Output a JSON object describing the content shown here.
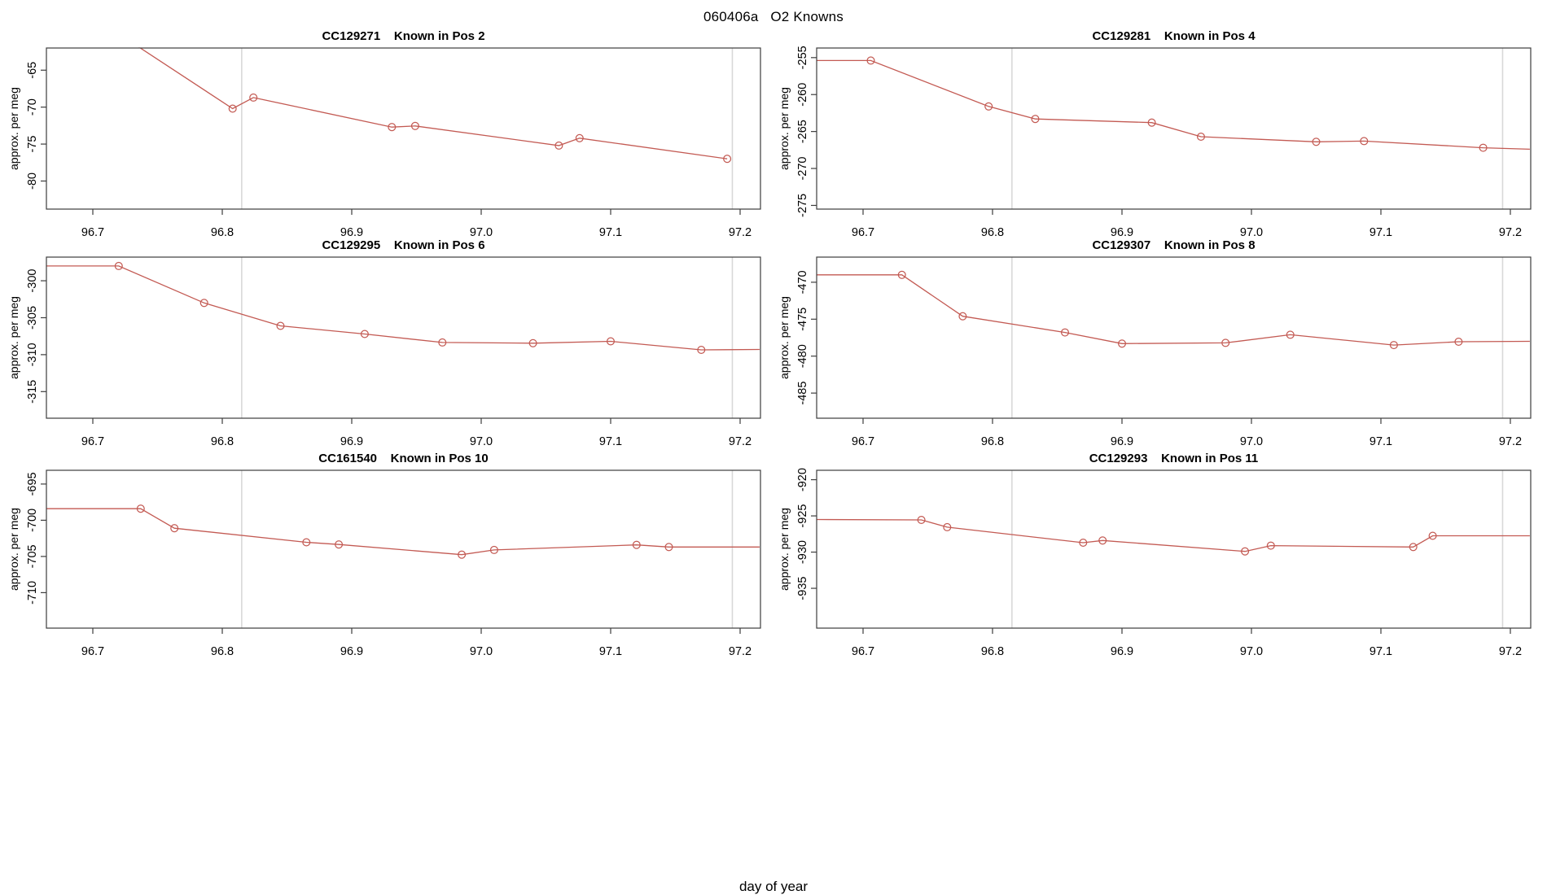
{
  "main_title": "060406a   O2 Knowns",
  "x_axis_label": "day of year",
  "y_axis_label": "approx. per meg",
  "colors": {
    "line": "#c35a53",
    "marker": "#c35a53",
    "grid": "#d8d8d8",
    "axis": "#3d3d3d",
    "text": "#000000",
    "background": "#ffffff"
  },
  "chart_data": {
    "type": "line",
    "xlabel": "day of year",
    "ylabel": "approx. per meg",
    "x_ticks": [
      96.7,
      96.8,
      96.9,
      97.0,
      97.1,
      97.2
    ],
    "xlim": [
      96.663,
      97.216
    ],
    "vlines_x": [
      96.815,
      97.194
    ],
    "grid": "vertical-reference-lines-only",
    "legend": "none",
    "marker_style": "open-circle",
    "panels": [
      {
        "title": "CC129271    Known in Pos 2",
        "sample_id": "CC129271",
        "position_label": "Known in Pos 2",
        "row": 0,
        "col": 0,
        "ylim": [
          -83.8,
          -62.0
        ],
        "yticks": [
          -65,
          -70,
          -75,
          -80
        ],
        "line": [
          [
            96.695,
            -57.2
          ],
          [
            96.808,
            -70.2
          ],
          [
            96.824,
            -68.7
          ],
          [
            96.931,
            -72.7
          ],
          [
            96.949,
            -72.55
          ],
          [
            97.06,
            -75.2
          ],
          [
            97.076,
            -74.2
          ],
          [
            97.19,
            -77.0
          ]
        ],
        "markers": [
          [
            96.808,
            -70.2
          ],
          [
            96.824,
            -68.7
          ],
          [
            96.931,
            -72.7
          ],
          [
            96.949,
            -72.55
          ],
          [
            97.06,
            -75.2
          ],
          [
            97.076,
            -74.2
          ],
          [
            97.19,
            -77.0
          ]
        ]
      },
      {
        "title": "CC129281    Known in Pos 4",
        "sample_id": "CC129281",
        "position_label": "Known in Pos 4",
        "row": 0,
        "col": 1,
        "ylim": [
          -275.5,
          -253.7
        ],
        "yticks": [
          -255,
          -260,
          -265,
          -270,
          -275
        ],
        "line": [
          [
            96.664,
            -255.4
          ],
          [
            96.706,
            -255.4
          ],
          [
            96.797,
            -261.6
          ],
          [
            96.833,
            -263.3
          ],
          [
            96.923,
            -263.8
          ],
          [
            96.961,
            -265.7
          ],
          [
            97.05,
            -266.4
          ],
          [
            97.087,
            -266.3
          ],
          [
            97.179,
            -267.2
          ],
          [
            97.215,
            -267.4
          ]
        ],
        "markers": [
          [
            96.706,
            -255.4
          ],
          [
            96.797,
            -261.6
          ],
          [
            96.833,
            -263.3
          ],
          [
            96.923,
            -263.8
          ],
          [
            96.961,
            -265.7
          ],
          [
            97.05,
            -266.4
          ],
          [
            97.087,
            -266.3
          ],
          [
            97.179,
            -267.2
          ]
        ]
      },
      {
        "title": "CC129295    Known in Pos 6",
        "sample_id": "CC129295",
        "position_label": "Known in Pos 6",
        "row": 1,
        "col": 0,
        "ylim": [
          -318.6,
          -296.8
        ],
        "yticks": [
          -300,
          -305,
          -310,
          -315
        ],
        "line": [
          [
            96.664,
            -298.0
          ],
          [
            96.72,
            -298.0
          ],
          [
            96.786,
            -303.0
          ],
          [
            96.845,
            -306.1
          ],
          [
            96.91,
            -307.2
          ],
          [
            96.97,
            -308.35
          ],
          [
            97.04,
            -308.45
          ],
          [
            97.1,
            -308.2
          ],
          [
            97.17,
            -309.35
          ],
          [
            97.215,
            -309.3
          ]
        ],
        "markers": [
          [
            96.72,
            -298.0
          ],
          [
            96.786,
            -303.0
          ],
          [
            96.845,
            -306.1
          ],
          [
            96.91,
            -307.2
          ],
          [
            96.97,
            -308.35
          ],
          [
            97.04,
            -308.45
          ],
          [
            97.1,
            -308.2
          ],
          [
            97.17,
            -309.35
          ]
        ]
      },
      {
        "title": "CC129307    Known in Pos 8",
        "sample_id": "CC129307",
        "position_label": "Known in Pos 8",
        "row": 1,
        "col": 1,
        "ylim": [
          -488.4,
          -466.6
        ],
        "yticks": [
          -470,
          -475,
          -480,
          -485
        ],
        "line": [
          [
            96.664,
            -469.0
          ],
          [
            96.73,
            -469.0
          ],
          [
            96.777,
            -474.6
          ],
          [
            96.856,
            -476.8
          ],
          [
            96.9,
            -478.3
          ],
          [
            96.98,
            -478.2
          ],
          [
            97.03,
            -477.1
          ],
          [
            97.11,
            -478.5
          ],
          [
            97.16,
            -478.05
          ],
          [
            97.215,
            -478.0
          ]
        ],
        "markers": [
          [
            96.73,
            -469.0
          ],
          [
            96.777,
            -474.6
          ],
          [
            96.856,
            -476.8
          ],
          [
            96.9,
            -478.3
          ],
          [
            96.98,
            -478.2
          ],
          [
            97.03,
            -477.1
          ],
          [
            97.11,
            -478.5
          ],
          [
            97.16,
            -478.05
          ]
        ]
      },
      {
        "title": "CC161540    Known in Pos 10",
        "sample_id": "CC161540",
        "position_label": "Known in Pos 10",
        "row": 2,
        "col": 0,
        "ylim": [
          -714.9,
          -693.1
        ],
        "yticks": [
          -695,
          -700,
          -705,
          -710
        ],
        "line": [
          [
            96.664,
            -698.4
          ],
          [
            96.737,
            -698.4
          ],
          [
            96.763,
            -701.1
          ],
          [
            96.865,
            -703.05
          ],
          [
            96.89,
            -703.35
          ],
          [
            96.985,
            -704.75
          ],
          [
            97.01,
            -704.1
          ],
          [
            97.12,
            -703.4
          ],
          [
            97.145,
            -703.7
          ],
          [
            97.215,
            -703.7
          ]
        ],
        "markers": [
          [
            96.737,
            -698.4
          ],
          [
            96.763,
            -701.1
          ],
          [
            96.865,
            -703.05
          ],
          [
            96.89,
            -703.35
          ],
          [
            96.985,
            -704.75
          ],
          [
            97.01,
            -704.1
          ],
          [
            97.12,
            -703.4
          ],
          [
            97.145,
            -703.7
          ]
        ]
      },
      {
        "title": "CC129293    Known in Pos 11",
        "sample_id": "CC129293",
        "position_label": "Known in Pos 11",
        "row": 2,
        "col": 1,
        "ylim": [
          -940.5,
          -918.7
        ],
        "yticks": [
          -920,
          -925,
          -930,
          -935
        ],
        "line": [
          [
            96.664,
            -925.5
          ],
          [
            96.745,
            -925.55
          ],
          [
            96.765,
            -926.55
          ],
          [
            96.87,
            -928.7
          ],
          [
            96.885,
            -928.4
          ],
          [
            96.995,
            -929.9
          ],
          [
            97.015,
            -929.1
          ],
          [
            97.125,
            -929.3
          ],
          [
            97.14,
            -927.75
          ],
          [
            97.215,
            -927.75
          ]
        ],
        "markers": [
          [
            96.745,
            -925.55
          ],
          [
            96.765,
            -926.55
          ],
          [
            96.87,
            -928.7
          ],
          [
            96.885,
            -928.4
          ],
          [
            96.995,
            -929.9
          ],
          [
            97.015,
            -929.1
          ],
          [
            97.125,
            -929.3
          ],
          [
            97.14,
            -927.75
          ]
        ]
      }
    ]
  }
}
